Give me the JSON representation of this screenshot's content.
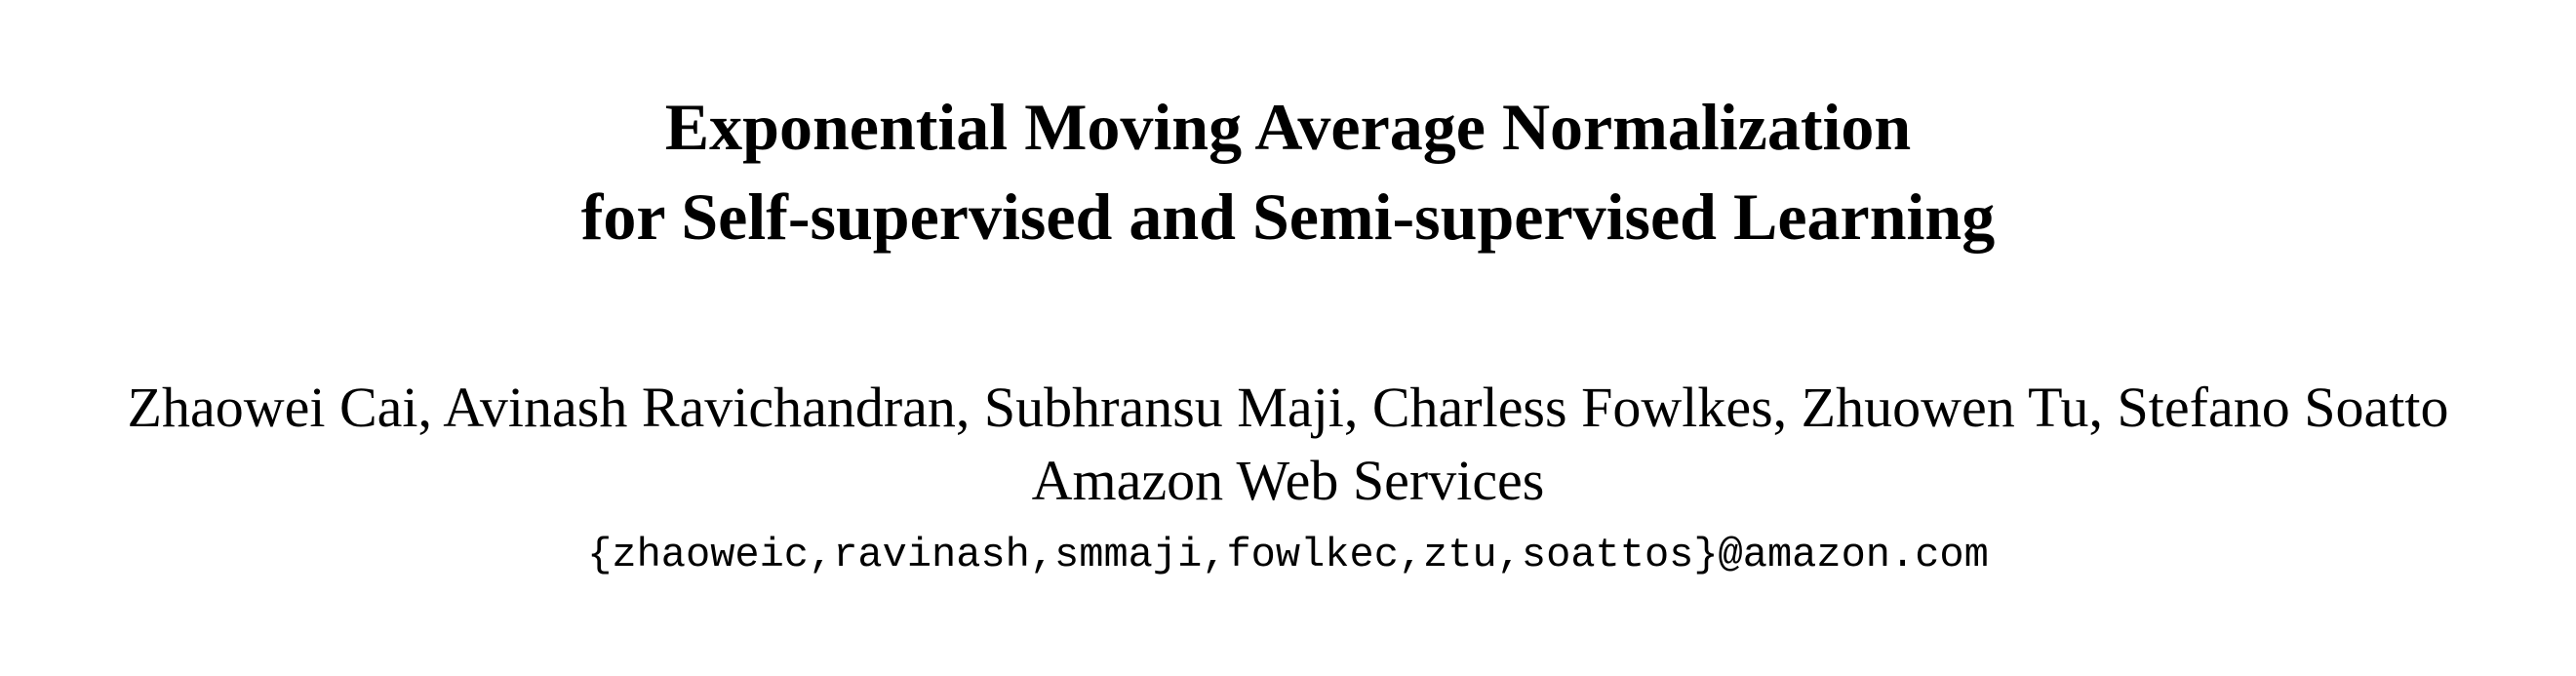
{
  "paper": {
    "title_line_1": "Exponential Moving Average Normalization",
    "title_line_2": "for Self-supervised and Semi-supervised Learning",
    "authors": "Zhaowei Cai, Avinash Ravichandran, Subhransu Maji, Charless Fowlkes, Zhuowen Tu, Stefano Soatto",
    "affiliation": "Amazon Web Services",
    "email": "{zhaoweic,ravinash,smmaji,fowlkec,ztu,soattos}@amazon.com"
  }
}
